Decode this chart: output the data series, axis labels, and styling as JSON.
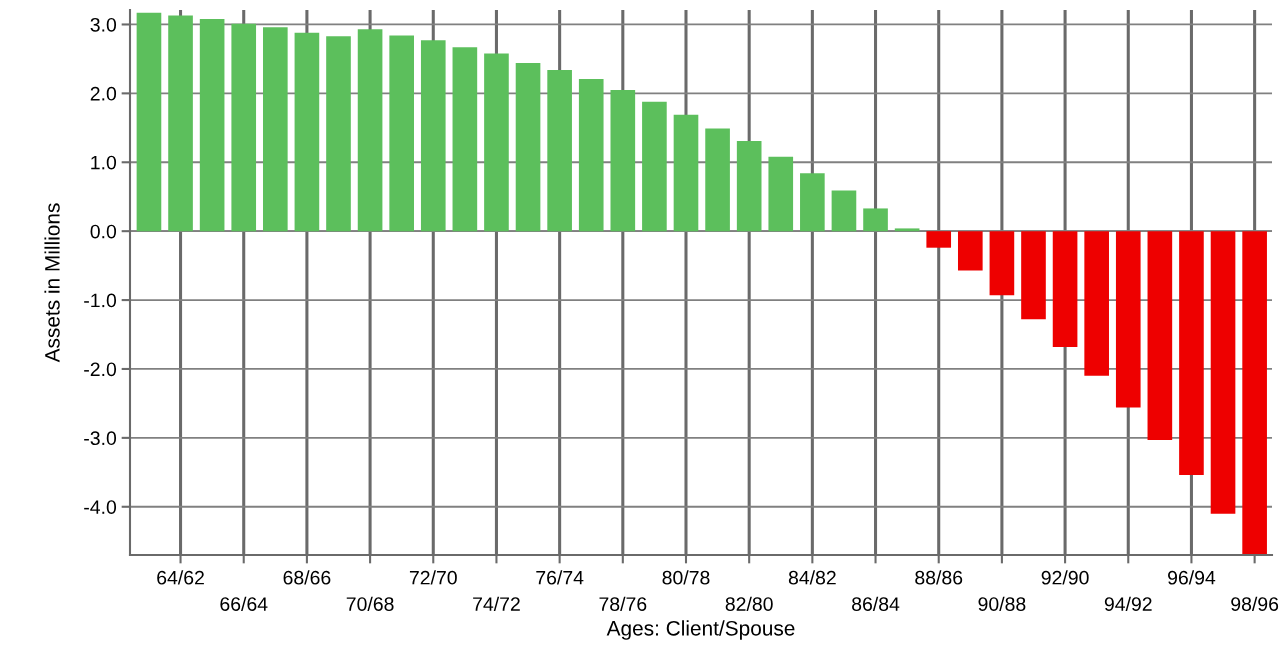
{
  "chart_data": {
    "type": "bar",
    "xlabel": "Ages: Client/Spouse",
    "ylabel": "Assets in Millions",
    "categories": [
      null,
      "64/62",
      null,
      "66/64",
      null,
      "68/66",
      null,
      "70/68",
      null,
      "72/70",
      null,
      "74/72",
      null,
      "76/74",
      null,
      "78/76",
      null,
      "80/78",
      null,
      "82/80",
      null,
      "84/82",
      null,
      "86/84",
      null,
      "88/86",
      null,
      "90/88",
      null,
      "92/90",
      null,
      "94/92",
      null,
      "96/94",
      null,
      "98/96"
    ],
    "values": [
      3.17,
      3.13,
      3.08,
      3.01,
      2.96,
      2.88,
      2.83,
      2.93,
      2.84,
      2.77,
      2.67,
      2.58,
      2.44,
      2.34,
      2.21,
      2.05,
      1.88,
      1.69,
      1.49,
      1.31,
      1.08,
      0.84,
      0.59,
      0.33,
      0.04,
      -0.24,
      -0.57,
      -0.93,
      -1.28,
      -1.68,
      -2.1,
      -2.56,
      -3.03,
      -3.54,
      -4.1,
      -4.7
    ],
    "colors": [
      "#5cbf5c",
      "#5cbf5c",
      "#5cbf5c",
      "#5cbf5c",
      "#5cbf5c",
      "#5cbf5c",
      "#5cbf5c",
      "#5cbf5c",
      "#5cbf5c",
      "#5cbf5c",
      "#5cbf5c",
      "#5cbf5c",
      "#5cbf5c",
      "#5cbf5c",
      "#5cbf5c",
      "#5cbf5c",
      "#5cbf5c",
      "#5cbf5c",
      "#5cbf5c",
      "#5cbf5c",
      "#5cbf5c",
      "#5cbf5c",
      "#5cbf5c",
      "#5cbf5c",
      "#5cbf5c",
      "#ee0000",
      "#ee0000",
      "#ee0000",
      "#ee0000",
      "#ee0000",
      "#ee0000",
      "#ee0000",
      "#ee0000",
      "#ee0000",
      "#ee0000",
      "#ee0000"
    ],
    "ylim": [
      -4.7,
      3.21
    ],
    "yticks": [
      {
        "value": -4,
        "label": "-4.0"
      },
      {
        "value": -3,
        "label": "-3.0"
      },
      {
        "value": -2,
        "label": "-2.0"
      },
      {
        "value": -1,
        "label": "-1.0"
      },
      {
        "value": 0,
        "label": "0.0"
      },
      {
        "value": 1,
        "label": "1.0"
      },
      {
        "value": 2,
        "label": "2.0"
      },
      {
        "value": 3,
        "label": "3.0"
      }
    ],
    "grid": true
  }
}
